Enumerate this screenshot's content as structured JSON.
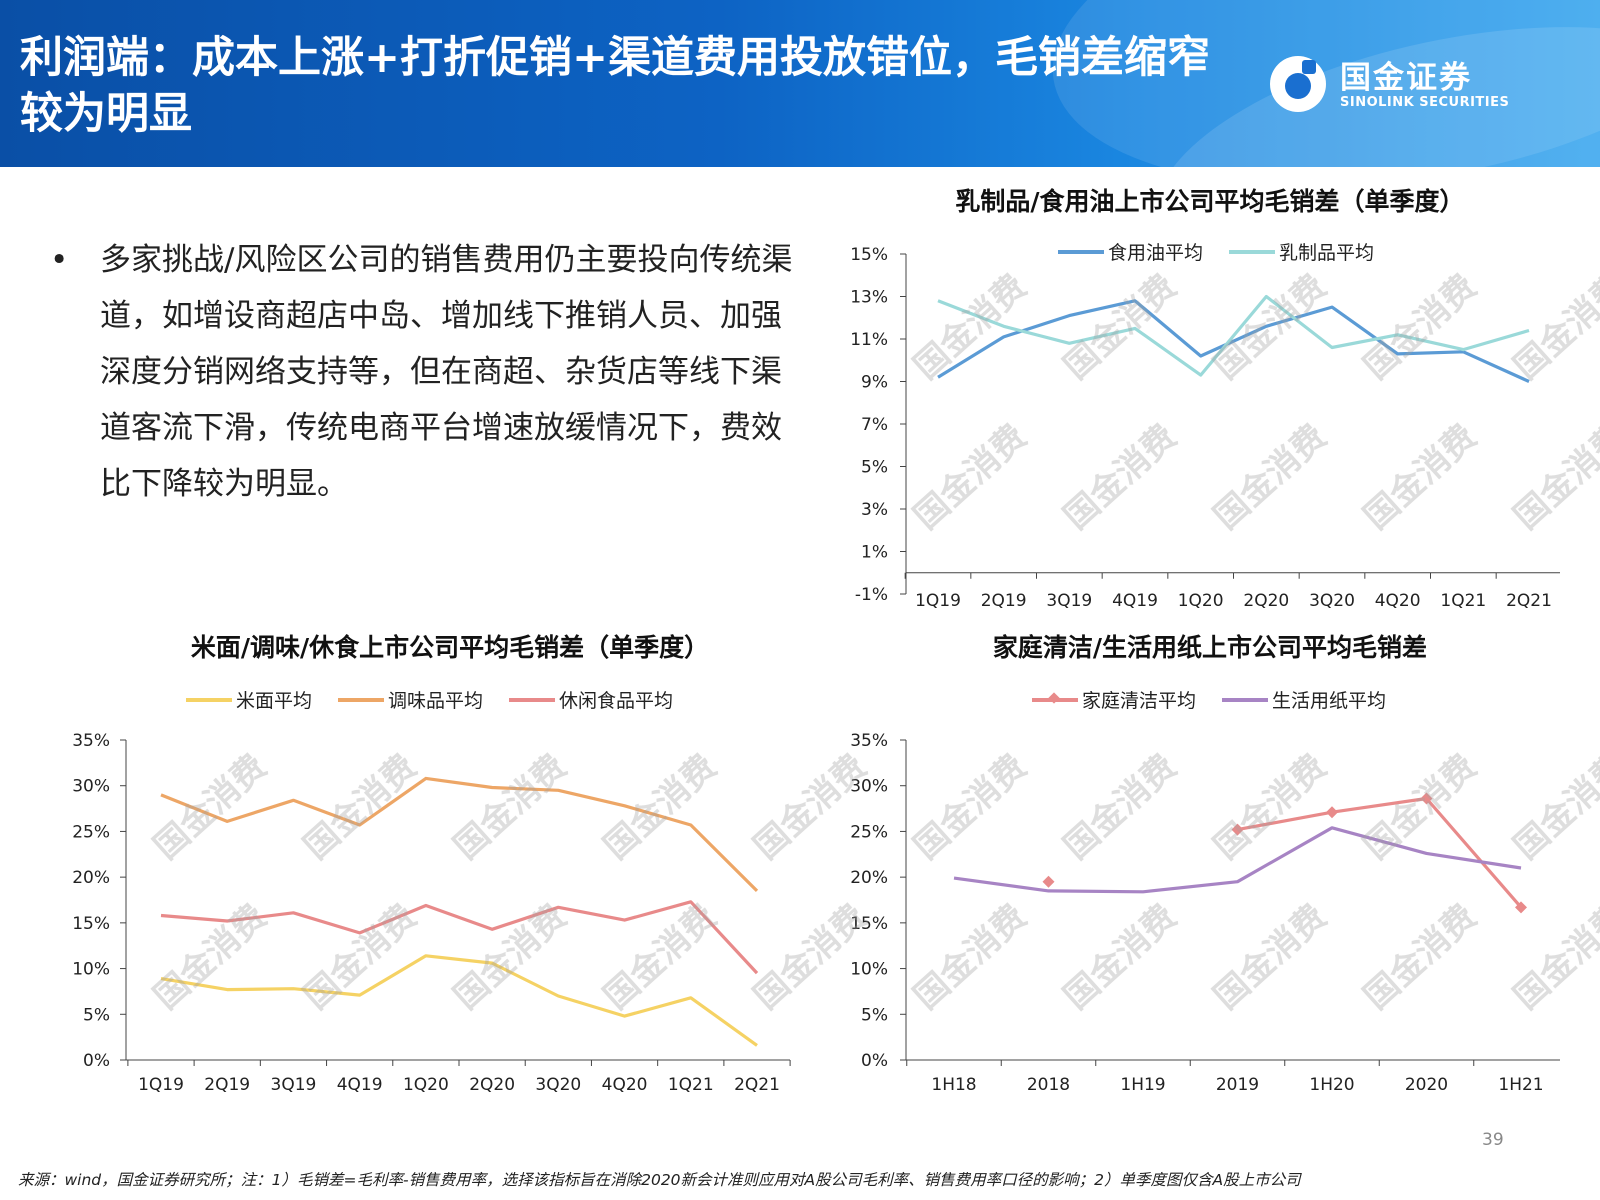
{
  "header": {
    "title": "利润端：成本上涨+打折促销+渠道费用投放错位，毛销差缩窄较为明显",
    "logo_cn": "国金证券",
    "logo_en": "SINOLINK SECURITIES"
  },
  "bullet": {
    "marker": "•",
    "text": "多家挑战/风险区公司的销售费用仍主要投向传统渠道，如增设商超店中岛、增加线下推销人员、加强深度分销网络支持等，但在商超、杂货店等线下渠道客流下滑，传统电商平台增速放缓情况下，费效比下降较为明显。"
  },
  "watermark": "国金消费",
  "page_number": "39",
  "footnote": "来源：wind，国金证券研究所；注：1）毛销差=毛利率-销售费用率，选择该指标旨在消除2020新会计准则应用对A股公司毛利率、销售费用率口径的影响；2）单季度图仅含A股上市公司",
  "chart_data": [
    {
      "id": "dairy_oil",
      "type": "line",
      "title": "乳制品/食用油上市公司平均毛销差（单季度）",
      "categories": [
        "1Q19",
        "2Q19",
        "3Q19",
        "4Q19",
        "1Q20",
        "2Q20",
        "3Q20",
        "4Q20",
        "1Q21",
        "2Q21"
      ],
      "yticks": [
        "15%",
        "13%",
        "11%",
        "9%",
        "7%",
        "5%",
        "3%",
        "1%",
        "-1%"
      ],
      "ylim": [
        -1,
        15
      ],
      "legend_position": "top",
      "series": [
        {
          "name": "食用油平均",
          "color": "#5b9bd5",
          "values": [
            9.2,
            11.1,
            12.1,
            12.8,
            10.2,
            11.6,
            12.5,
            10.3,
            10.4,
            9.0
          ]
        },
        {
          "name": "乳制品平均",
          "color": "#9ad9d9",
          "values": [
            12.8,
            11.6,
            10.8,
            11.5,
            9.3,
            13.0,
            10.6,
            11.2,
            10.5,
            11.4
          ]
        }
      ]
    },
    {
      "id": "rice_seasoning_snack",
      "type": "line",
      "title": "米面/调味/休食上市公司平均毛销差（单季度）",
      "categories": [
        "1Q19",
        "2Q19",
        "3Q19",
        "4Q19",
        "1Q20",
        "2Q20",
        "3Q20",
        "4Q20",
        "1Q21",
        "2Q21"
      ],
      "yticks": [
        "35%",
        "30%",
        "25%",
        "20%",
        "15%",
        "10%",
        "5%",
        "0%"
      ],
      "ylim": [
        0,
        35
      ],
      "legend_position": "top",
      "series": [
        {
          "name": "米面平均",
          "color": "#f5d264",
          "values": [
            8.9,
            7.7,
            7.8,
            7.1,
            11.4,
            10.6,
            7.0,
            4.8,
            6.8,
            1.6
          ]
        },
        {
          "name": "调味品平均",
          "color": "#eda666",
          "values": [
            29.0,
            26.1,
            28.4,
            25.7,
            30.8,
            29.8,
            29.5,
            27.8,
            25.7,
            18.5
          ]
        },
        {
          "name": "休闲食品平均",
          "color": "#e88a8a",
          "values": [
            15.8,
            15.2,
            16.1,
            13.9,
            16.9,
            14.3,
            16.7,
            15.3,
            17.3,
            9.5
          ]
        }
      ]
    },
    {
      "id": "cleaning_paper",
      "type": "line",
      "title": "家庭清洁/生活用纸上市公司平均毛销差",
      "categories": [
        "1H18",
        "2018",
        "1H19",
        "2019",
        "1H20",
        "2020",
        "1H21"
      ],
      "yticks": [
        "35%",
        "30%",
        "25%",
        "20%",
        "15%",
        "10%",
        "5%",
        "0%"
      ],
      "ylim": [
        0,
        35
      ],
      "legend_position": "top",
      "series": [
        {
          "name": "家庭清洁平均",
          "color": "#e88a8a",
          "marker": "diamond",
          "values": [
            null,
            19.5,
            null,
            25.2,
            27.1,
            28.6,
            16.7
          ]
        },
        {
          "name": "生活用纸平均",
          "color": "#a784c4",
          "values": [
            19.9,
            18.5,
            18.4,
            19.5,
            25.4,
            22.6,
            21.0
          ]
        }
      ]
    }
  ]
}
